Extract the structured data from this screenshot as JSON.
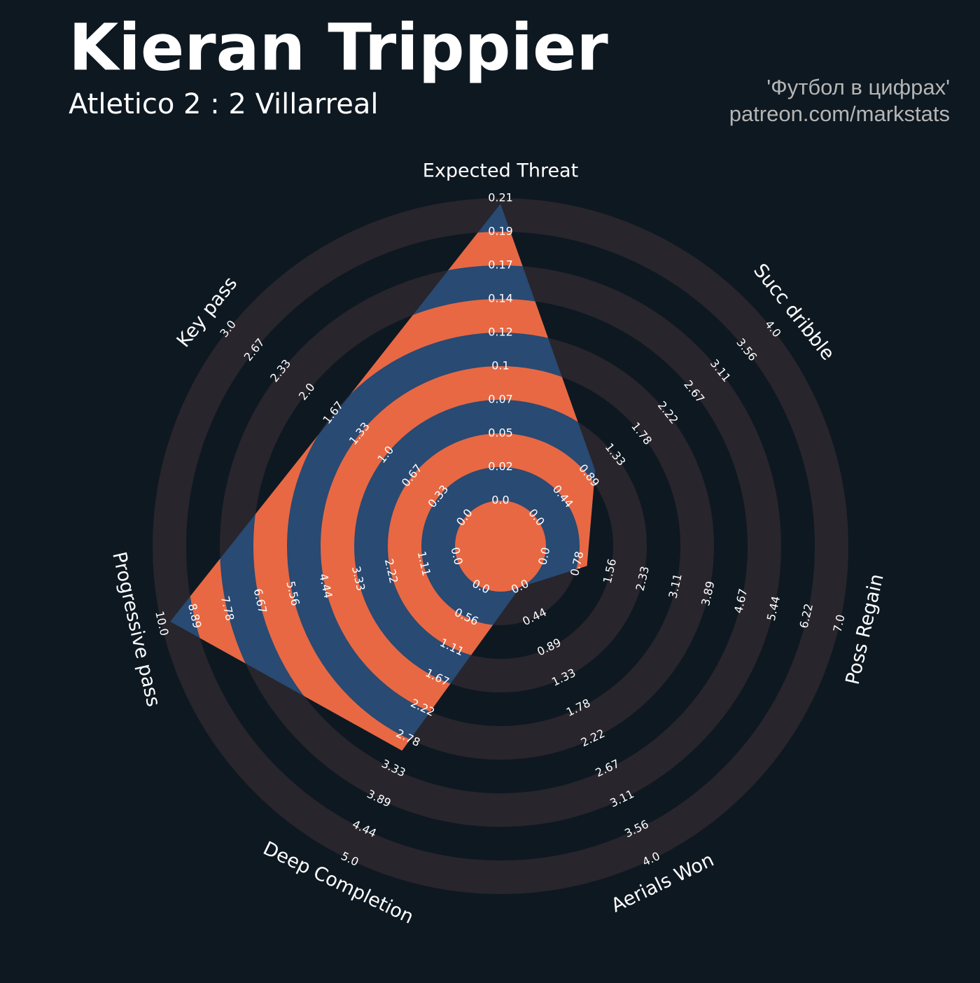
{
  "chart_data": {
    "type": "radar",
    "title": "Kieran Trippier",
    "subtitle": "Atletico 2 : 2 Villarreal",
    "credits": [
      "'Футбол в цифрах'",
      "patreon.com/markstats"
    ],
    "categories": [
      "Expected Threat",
      "Succ dribble",
      "Poss Regain",
      "Aerials Won",
      "Deep Completion",
      "Progressive pass",
      "Key pass"
    ],
    "values": [
      0.21,
      1,
      1,
      0,
      3,
      9.7,
      1.65
    ],
    "ranges": [
      [
        0,
        0.214
      ],
      [
        0,
        4
      ],
      [
        0,
        7
      ],
      [
        0,
        4
      ],
      [
        0,
        5
      ],
      [
        0,
        10
      ],
      [
        0,
        3
      ]
    ],
    "ticks": [
      [
        {
          "value": 0,
          "label": "0.0"
        },
        {
          "value": 0.0238,
          "label": "0.02"
        },
        {
          "value": 0.0476,
          "label": "0.05"
        },
        {
          "value": 0.0713,
          "label": "0.07"
        },
        {
          "value": 0.0951,
          "label": "0.1"
        },
        {
          "value": 0.1189,
          "label": "0.12"
        },
        {
          "value": 0.1427,
          "label": "0.14"
        },
        {
          "value": 0.1664,
          "label": "0.17"
        },
        {
          "value": 0.1902,
          "label": "0.19"
        },
        {
          "value": 0.214,
          "label": "0.21"
        }
      ],
      [
        {
          "value": 0,
          "label": "0.0"
        },
        {
          "value": 0.4444,
          "label": "0.44"
        },
        {
          "value": 0.8889,
          "label": "0.89"
        },
        {
          "value": 1.3333,
          "label": "1.33"
        },
        {
          "value": 1.7778,
          "label": "1.78"
        },
        {
          "value": 2.2222,
          "label": "2.22"
        },
        {
          "value": 2.6667,
          "label": "2.67"
        },
        {
          "value": 3.1111,
          "label": "3.11"
        },
        {
          "value": 3.5556,
          "label": "3.56"
        },
        {
          "value": 4,
          "label": "4.0"
        }
      ],
      [
        {
          "value": 0,
          "label": "0.0"
        },
        {
          "value": 0.7778,
          "label": "0.78"
        },
        {
          "value": 1.5556,
          "label": "1.56"
        },
        {
          "value": 2.3333,
          "label": "2.33"
        },
        {
          "value": 3.1111,
          "label": "3.11"
        },
        {
          "value": 3.8889,
          "label": "3.89"
        },
        {
          "value": 4.6667,
          "label": "4.67"
        },
        {
          "value": 5.4444,
          "label": "5.44"
        },
        {
          "value": 6.2222,
          "label": "6.22"
        },
        {
          "value": 7,
          "label": "7.0"
        }
      ],
      [
        {
          "value": 0,
          "label": "0.0"
        },
        {
          "value": 0.4444,
          "label": "0.44"
        },
        {
          "value": 0.8889,
          "label": "0.89"
        },
        {
          "value": 1.3333,
          "label": "1.33"
        },
        {
          "value": 1.7778,
          "label": "1.78"
        },
        {
          "value": 2.2222,
          "label": "2.22"
        },
        {
          "value": 2.6667,
          "label": "2.67"
        },
        {
          "value": 3.1111,
          "label": "3.11"
        },
        {
          "value": 3.5556,
          "label": "3.56"
        },
        {
          "value": 4,
          "label": "4.0"
        }
      ],
      [
        {
          "value": 0,
          "label": "0.0"
        },
        {
          "value": 0.5556,
          "label": "0.56"
        },
        {
          "value": 1.1111,
          "label": "1.11"
        },
        {
          "value": 1.6667,
          "label": "1.67"
        },
        {
          "value": 2.2222,
          "label": "2.22"
        },
        {
          "value": 2.7778,
          "label": "2.78"
        },
        {
          "value": 3.3333,
          "label": "3.33"
        },
        {
          "value": 3.8889,
          "label": "3.89"
        },
        {
          "value": 4.4444,
          "label": "4.44"
        },
        {
          "value": 5,
          "label": "5.0"
        }
      ],
      [
        {
          "value": 0,
          "label": "0.0"
        },
        {
          "value": 1.1111,
          "label": "1.11"
        },
        {
          "value": 2.2222,
          "label": "2.22"
        },
        {
          "value": 3.3333,
          "label": "3.33"
        },
        {
          "value": 4.4444,
          "label": "4.44"
        },
        {
          "value": 5.5556,
          "label": "5.56"
        },
        {
          "value": 6.6667,
          "label": "6.67"
        },
        {
          "value": 7.7778,
          "label": "7.78"
        },
        {
          "value": 8.8889,
          "label": "8.89"
        },
        {
          "value": 10,
          "label": "10.0"
        }
      ],
      [
        {
          "value": 0,
          "label": "0.0"
        },
        {
          "value": 0.3333,
          "label": "0.33"
        },
        {
          "value": 0.6667,
          "label": "0.67"
        },
        {
          "value": 1,
          "label": "1.0"
        },
        {
          "value": 1.3333,
          "label": "1.33"
        },
        {
          "value": 1.6667,
          "label": "1.67"
        },
        {
          "value": 2,
          "label": "2.0"
        },
        {
          "value": 2.3333,
          "label": "2.33"
        },
        {
          "value": 2.6667,
          "label": "2.67"
        },
        {
          "value": 3,
          "label": "3.0"
        }
      ]
    ],
    "color": "#284a73",
    "ring_color": "#e86843",
    "background_ring_color": "#28252c"
  }
}
